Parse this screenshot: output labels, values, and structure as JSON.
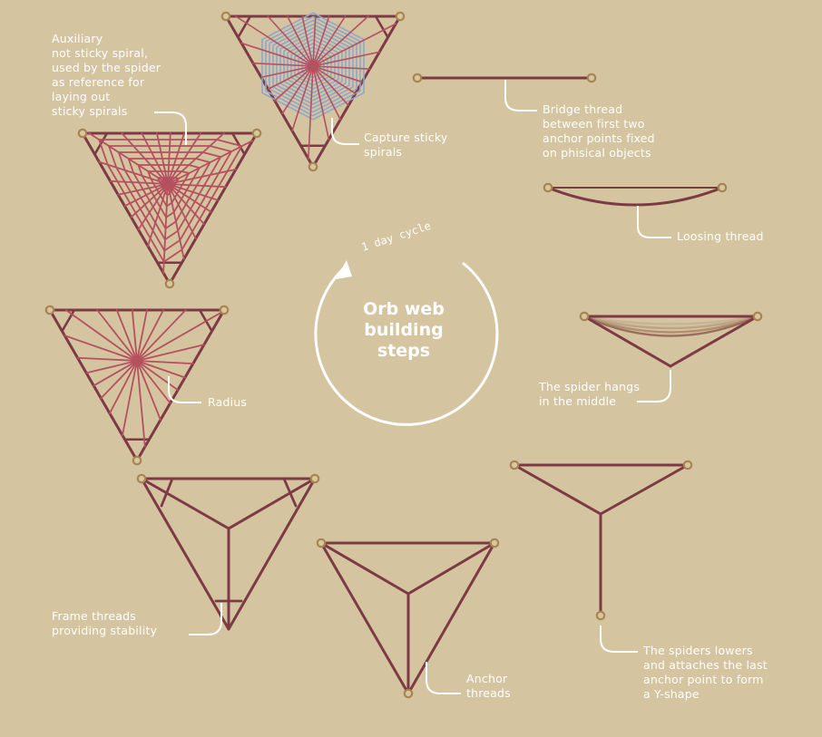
{
  "colors": {
    "background": "#d4c4a0",
    "thread": "#7d3a44",
    "radius": "#b5505e",
    "sticky_spiral": "#8fa6cc",
    "anchor_ring": "#a88450",
    "text": "#ffffff"
  },
  "center": {
    "title": "Orb web\nbuilding\nsteps",
    "cycle_label": "1 day cycle"
  },
  "steps": [
    {
      "id": "y-shape",
      "label": "The spiders lowers\nand attaches the last\nanchor point to form\na Y-shape"
    },
    {
      "id": "anchor",
      "label": "Anchor\nthreads"
    },
    {
      "id": "frame",
      "label": "Frame threads\nproviding stability"
    },
    {
      "id": "radius",
      "label": "Radius"
    },
    {
      "id": "auxiliary",
      "label": "Auxiliary\nnot sticky spiral,\nused by the spider\nas reference for\nlaying out\nsticky spirals"
    },
    {
      "id": "capture",
      "label": "Capture sticky\nspirals"
    },
    {
      "id": "bridge",
      "label": "Bridge thread\nbetween first two\nanchor points fixed\non phisical objects"
    },
    {
      "id": "loosing",
      "label": "Loosing thread"
    },
    {
      "id": "hangs",
      "label": "The spider hangs\nin the middle"
    }
  ]
}
